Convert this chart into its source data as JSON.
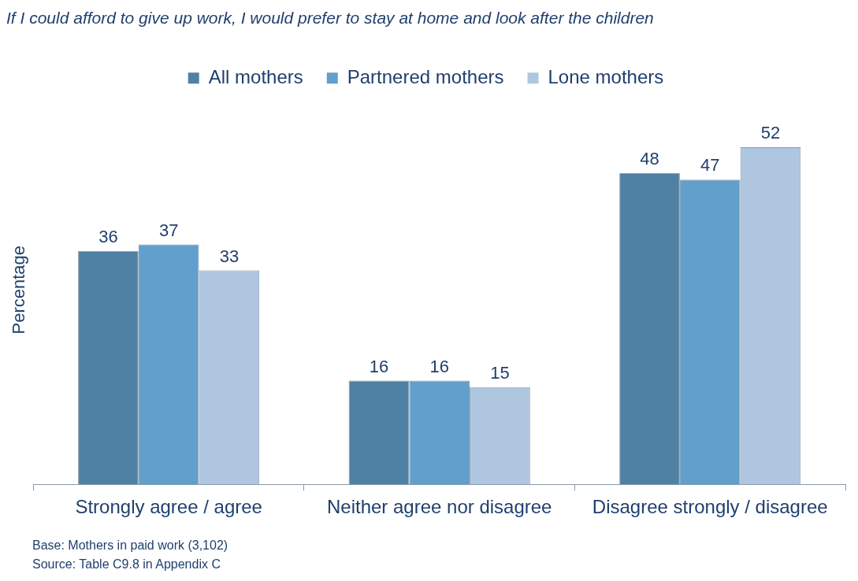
{
  "chart_data": {
    "type": "bar",
    "title": "If I could afford to give up work, I would prefer to stay at home and look after the children",
    "ylabel": "Percentage",
    "categories": [
      "Strongly agree / agree",
      "Neither agree nor disagree",
      "Disagree strongly / disagree"
    ],
    "series": [
      {
        "name": "All mothers",
        "color": "#4f81a4",
        "values": [
          36,
          16,
          48
        ]
      },
      {
        "name": "Partnered mothers",
        "color": "#619fcc",
        "values": [
          37,
          16,
          47
        ]
      },
      {
        "name": "Lone mothers",
        "color": "#aec6df",
        "values": [
          33,
          15,
          52
        ]
      }
    ],
    "data_labels": true,
    "legend": "top",
    "grid": false,
    "tick_labels": "x",
    "annotations": [
      "Base: Mothers in paid work (3,102)",
      "Source: Table C9.8 in Appendix C"
    ]
  }
}
